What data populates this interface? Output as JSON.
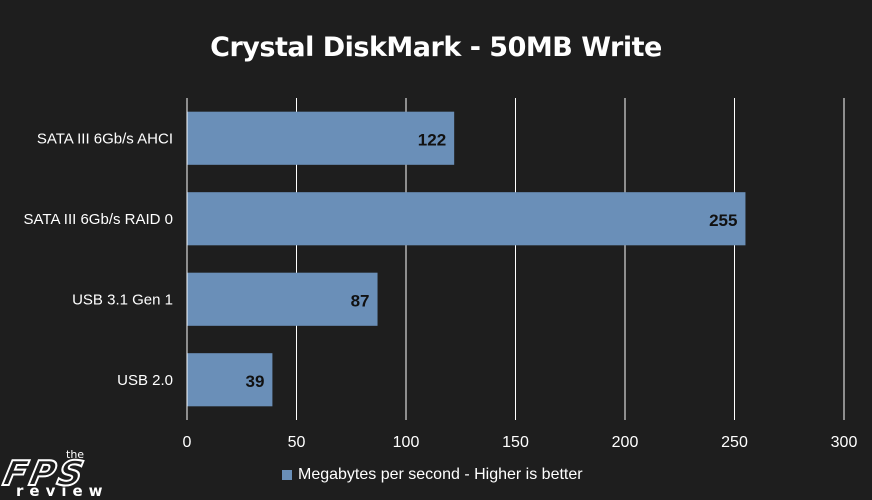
{
  "chart_data": {
    "type": "bar",
    "orientation": "horizontal",
    "title": "Crystal DiskMark - 50MB Write",
    "categories": [
      "SATA III 6Gb/s AHCI",
      "SATA III 6Gb/s RAID 0",
      "USB 3.1 Gen 1",
      "USB 2.0"
    ],
    "series": [
      {
        "name": "Megabytes per second - Higher is better",
        "values": [
          122,
          255,
          87,
          39
        ]
      }
    ],
    "xlim": [
      0,
      300
    ],
    "xticks": [
      0,
      50,
      100,
      150,
      200,
      250,
      300
    ],
    "grid": true,
    "legend_position": "bottom",
    "bar_color": "#6a8fb8",
    "background_color": "#1e1e1e",
    "gridline_color": "#ffffff"
  },
  "logo": {
    "the": "the",
    "name": "FPS",
    "review": "review"
  }
}
